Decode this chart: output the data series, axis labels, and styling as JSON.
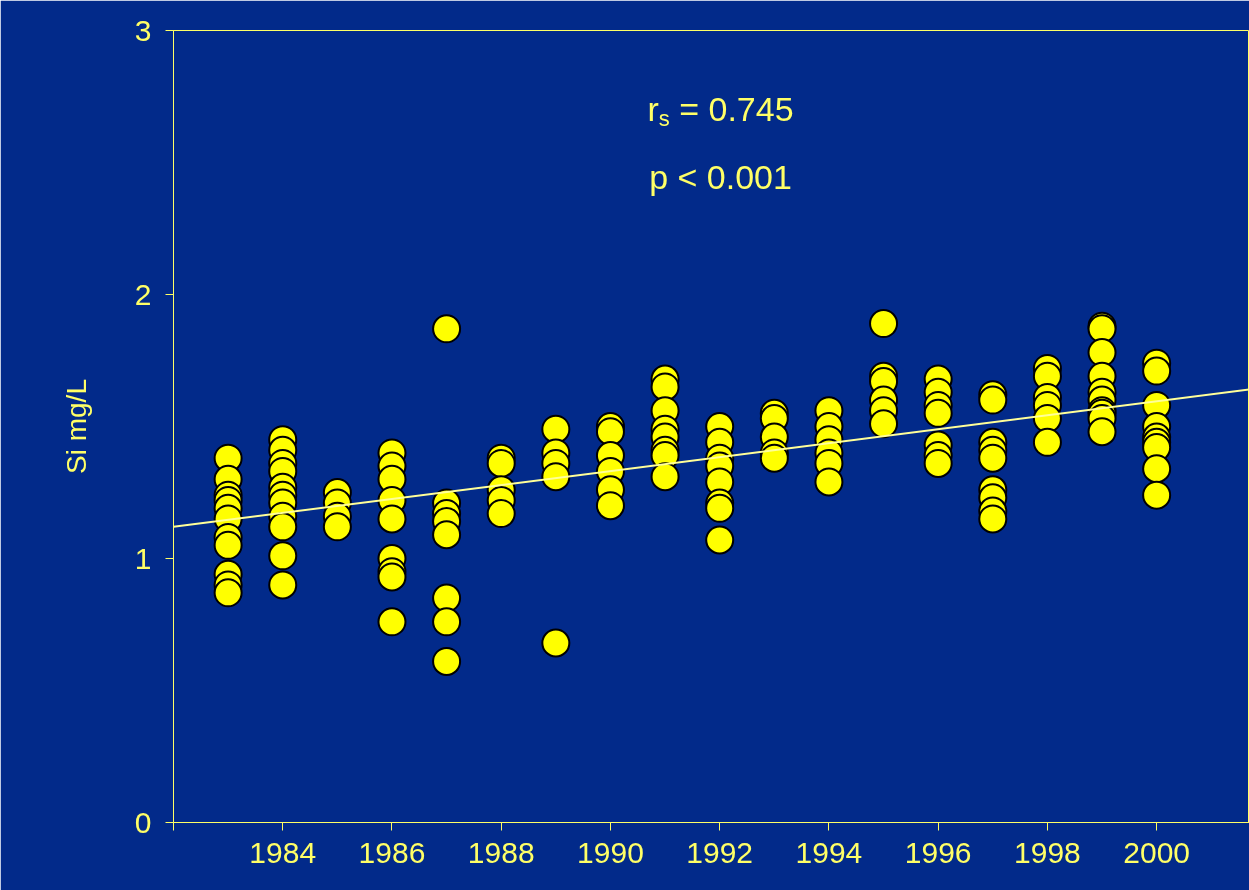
{
  "chart_data": {
    "type": "scatter",
    "ylabel": "Si mg/L",
    "annotations": [
      "r$_{s}$ = 0.745",
      "p < 0.001"
    ],
    "xlim": [
      1982,
      2001.7
    ],
    "xticks": [
      {
        "value": 1982,
        "label": null
      },
      1984,
      1986,
      1988,
      1990,
      1992,
      1994,
      1996,
      1998,
      2000
    ],
    "ylim": [
      0,
      3
    ],
    "yticks": [
      0,
      1,
      2,
      3
    ],
    "series": [
      {
        "color": "#ffff00",
        "marker": "circle",
        "x": [
          1983,
          1983,
          1983,
          1983,
          1983,
          1983,
          1983,
          1983,
          1983,
          1983,
          1983,
          1984,
          1984,
          1984,
          1984,
          1984,
          1984,
          1984,
          1984,
          1984,
          1984,
          1984,
          1985,
          1985,
          1985,
          1985,
          1986,
          1986,
          1986,
          1986,
          1986,
          1986,
          1986,
          1986,
          1986,
          1987,
          1987,
          1987,
          1987,
          1987,
          1987,
          1987,
          1987,
          1988,
          1988,
          1988,
          1988,
          1988,
          1989,
          1989,
          1989,
          1989,
          1989,
          1990,
          1990,
          1990,
          1990,
          1990,
          1990,
          1991,
          1991,
          1991,
          1991,
          1991,
          1991,
          1991,
          1991,
          1992,
          1992,
          1992,
          1992,
          1992,
          1992,
          1992,
          1992,
          1993,
          1993,
          1993,
          1993,
          1993,
          1994,
          1994,
          1994,
          1994,
          1994,
          1994,
          1995,
          1995,
          1995,
          1995,
          1995,
          1995,
          1996,
          1996,
          1996,
          1996,
          1996,
          1996,
          1996,
          1997,
          1997,
          1997,
          1997,
          1997,
          1997,
          1997,
          1997,
          1997,
          1998,
          1998,
          1998,
          1998,
          1998,
          1998,
          1999,
          1999,
          1999,
          1999,
          1999,
          1999,
          1999,
          1999,
          1999,
          1999,
          2000,
          2000,
          2000,
          2000,
          2000,
          2000,
          2000,
          2000,
          2000
        ],
        "values": [
          1.38,
          1.3,
          1.24,
          1.22,
          1.19,
          1.15,
          1.08,
          1.05,
          0.94,
          0.9,
          0.87,
          1.45,
          1.41,
          1.36,
          1.33,
          1.27,
          1.24,
          1.21,
          1.16,
          1.12,
          1.01,
          0.9,
          1.25,
          1.21,
          1.16,
          1.12,
          1.4,
          1.35,
          1.3,
          1.22,
          1.15,
          1.0,
          0.95,
          0.93,
          0.76,
          1.87,
          1.21,
          1.17,
          1.14,
          1.09,
          0.85,
          0.76,
          0.61,
          1.38,
          1.36,
          1.26,
          1.22,
          1.17,
          1.49,
          1.4,
          1.36,
          1.31,
          0.68,
          1.5,
          1.48,
          1.39,
          1.33,
          1.26,
          1.2,
          1.68,
          1.65,
          1.56,
          1.49,
          1.46,
          1.41,
          1.39,
          1.31,
          1.5,
          1.44,
          1.38,
          1.35,
          1.29,
          1.21,
          1.19,
          1.07,
          1.55,
          1.53,
          1.46,
          1.4,
          1.38,
          1.56,
          1.5,
          1.45,
          1.4,
          1.36,
          1.29,
          1.89,
          1.69,
          1.67,
          1.6,
          1.56,
          1.51,
          1.68,
          1.63,
          1.58,
          1.55,
          1.43,
          1.39,
          1.36,
          1.62,
          1.6,
          1.44,
          1.41,
          1.38,
          1.26,
          1.23,
          1.18,
          1.15,
          1.72,
          1.69,
          1.61,
          1.58,
          1.53,
          1.44,
          1.88,
          1.87,
          1.78,
          1.69,
          1.63,
          1.6,
          1.56,
          1.55,
          1.53,
          1.48,
          1.74,
          1.71,
          1.58,
          1.5,
          1.46,
          1.44,
          1.42,
          1.34,
          1.24
        ]
      },
      {
        "type": "line",
        "color": "#ffff99",
        "x": [
          1982,
          2001.7
        ],
        "values": [
          1.12,
          1.64
        ]
      }
    ]
  }
}
